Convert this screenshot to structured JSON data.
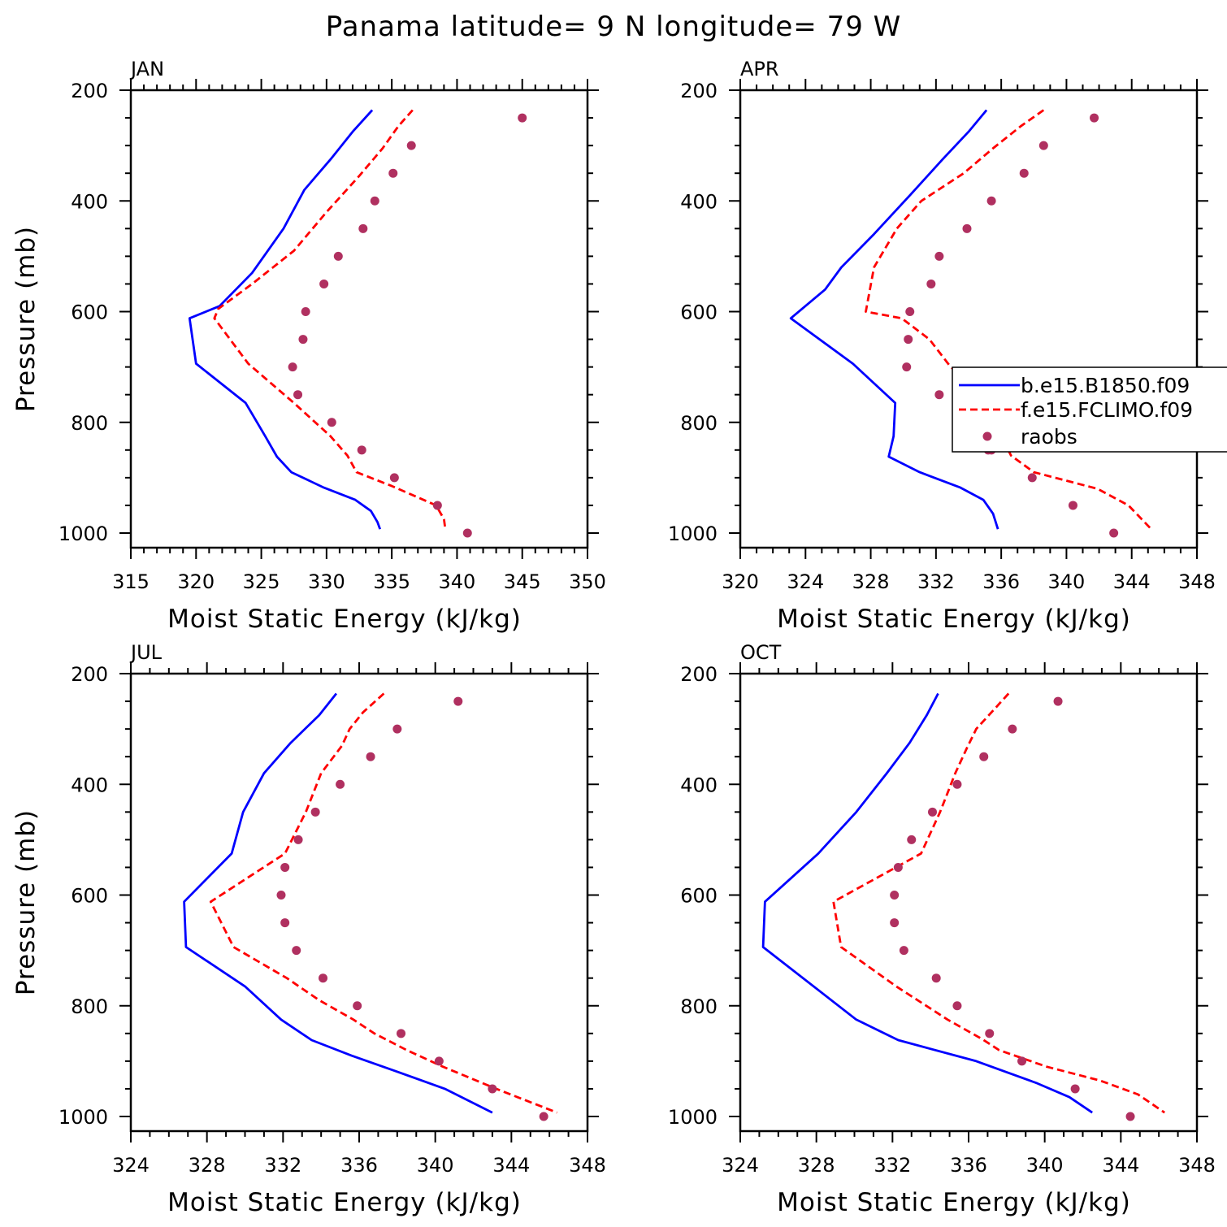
{
  "title": "Panama  latitude= 9 N longitude= 79 W",
  "colors": {
    "model_b": "#0000ff",
    "model_f": "#ff0000",
    "raobs": "#b03060"
  },
  "legend": {
    "entries": [
      {
        "label": "b.e15.B1850.f09",
        "style": "solid"
      },
      {
        "label": "f.e15.FCLIMO.f09",
        "style": "dashed"
      },
      {
        "label": "raobs",
        "style": "marker"
      }
    ]
  },
  "chart_data": [
    {
      "type": "line",
      "panel_label": "JAN",
      "xlabel": "Moist Static Energy (kJ/kg)",
      "ylabel": "Pressure (mb)",
      "xlim": [
        315,
        350
      ],
      "xticks": [
        315,
        320,
        325,
        330,
        335,
        340,
        345,
        350
      ],
      "ylim": [
        1000,
        200
      ],
      "yticks": [
        1000,
        800,
        600,
        400,
        200
      ],
      "series": [
        {
          "name": "b.e15.B1850.f09",
          "style": "solid",
          "x": [
            333.5,
            332.0,
            330.3,
            328.3,
            326.7,
            324.3,
            321.8,
            319.5,
            320.0,
            323.8,
            325.3,
            326.2,
            327.3,
            329.8,
            332.2,
            333.4,
            333.9,
            334.1
          ],
          "y": [
            236,
            275,
            325,
            380,
            450,
            530,
            590,
            612,
            694,
            765,
            825,
            862,
            890,
            918,
            940,
            960,
            980,
            993
          ]
        },
        {
          "name": "f.e15.FCLIMO.f09",
          "style": "dashed",
          "x": [
            336.6,
            335.5,
            334.3,
            332.5,
            330.0,
            327.5,
            324.3,
            321.7,
            321.4,
            324.0,
            327.5,
            330.3,
            331.6,
            332.3,
            335.0,
            338.4,
            339.0,
            339.1
          ],
          "y": [
            236,
            265,
            305,
            355,
            420,
            490,
            550,
            595,
            612,
            694,
            765,
            825,
            860,
            890,
            915,
            950,
            975,
            993
          ]
        },
        {
          "name": "raobs",
          "style": "marker",
          "x": [
            345.0,
            336.5,
            335.1,
            333.7,
            332.8,
            330.9,
            329.8,
            328.4,
            328.2,
            327.4,
            327.8,
            330.4,
            332.7,
            335.2,
            338.5,
            340.8
          ],
          "y": [
            250,
            300,
            350,
            400,
            450,
            500,
            550,
            600,
            650,
            700,
            750,
            800,
            850,
            900,
            950,
            1000
          ]
        }
      ]
    },
    {
      "type": "line",
      "panel_label": "APR",
      "xlabel": "Moist Static Energy (kJ/kg)",
      "ylabel": "",
      "xlim": [
        320,
        348
      ],
      "xticks": [
        320,
        324,
        328,
        332,
        336,
        340,
        344,
        348
      ],
      "ylim": [
        1000,
        200
      ],
      "yticks": [
        1000,
        800,
        600,
        400,
        200
      ],
      "series": [
        {
          "name": "b.e15.B1850.f09",
          "style": "solid",
          "x": [
            335.1,
            334.0,
            332.4,
            330.4,
            328.2,
            326.2,
            325.2,
            323.1,
            326.9,
            329.5,
            329.4,
            329.1,
            329.3,
            331.0,
            333.5,
            334.9,
            335.5,
            335.8
          ],
          "y": [
            236,
            275,
            325,
            390,
            460,
            520,
            560,
            612,
            694,
            765,
            825,
            862,
            865,
            890,
            918,
            940,
            965,
            993
          ]
        },
        {
          "name": "f.e15.FCLIMO.f09",
          "style": "dashed",
          "x": [
            338.6,
            337.2,
            335.5,
            333.7,
            331.1,
            329.6,
            328.2,
            327.7,
            329.9,
            331.6,
            332.9,
            334.6,
            335.5,
            336.0,
            336.6,
            338.0,
            341.9,
            343.8,
            345.2
          ],
          "y": [
            236,
            265,
            305,
            350,
            400,
            450,
            520,
            600,
            612,
            650,
            700,
            740,
            780,
            825,
            860,
            890,
            920,
            950,
            993
          ]
        },
        {
          "name": "raobs",
          "style": "marker",
          "x": [
            341.7,
            338.6,
            337.4,
            335.4,
            333.9,
            332.2,
            331.7,
            330.4,
            330.3,
            330.2,
            332.2,
            334.0,
            335.1,
            335.2,
            335.4,
            337.9,
            340.4,
            342.9
          ],
          "y": [
            250,
            300,
            350,
            400,
            450,
            500,
            550,
            600,
            650,
            700,
            750,
            800,
            825,
            850,
            850,
            900,
            950,
            1000
          ]
        }
      ]
    },
    {
      "type": "line",
      "panel_label": "JUL",
      "xlabel": "Moist Static Energy (kJ/kg)",
      "ylabel": "Pressure (mb)",
      "xlim": [
        324,
        348
      ],
      "xticks": [
        324,
        328,
        332,
        336,
        340,
        344,
        348
      ],
      "ylim": [
        1000,
        200
      ],
      "yticks": [
        1000,
        800,
        600,
        400,
        200
      ],
      "series": [
        {
          "name": "b.e15.B1850.f09",
          "style": "solid",
          "x": [
            334.8,
            333.9,
            332.4,
            331.0,
            329.9,
            329.3,
            326.8,
            326.9,
            330.0,
            331.9,
            333.5,
            335.6,
            337.9,
            340.5,
            343.0
          ],
          "y": [
            236,
            275,
            325,
            380,
            450,
            525,
            612,
            694,
            765,
            825,
            862,
            890,
            918,
            950,
            993
          ]
        },
        {
          "name": "f.e15.FCLIMO.f09",
          "style": "dashed",
          "x": [
            337.3,
            336.2,
            335.5,
            335.1,
            334.0,
            333.2,
            332.1,
            328.2,
            329.4,
            332.2,
            333.9,
            335.7,
            336.8,
            338.5,
            340.4,
            343.2,
            346.4
          ],
          "y": [
            236,
            270,
            300,
            330,
            380,
            450,
            525,
            612,
            694,
            750,
            790,
            825,
            850,
            880,
            910,
            950,
            993
          ]
        },
        {
          "name": "raobs",
          "style": "marker",
          "x": [
            341.2,
            338.0,
            336.6,
            335.0,
            333.7,
            332.8,
            332.1,
            331.9,
            332.1,
            332.7,
            334.1,
            335.9,
            338.2,
            340.2,
            343.0,
            345.7
          ],
          "y": [
            250,
            300,
            350,
            400,
            450,
            500,
            550,
            600,
            650,
            700,
            750,
            800,
            850,
            900,
            950,
            1000
          ]
        }
      ]
    },
    {
      "type": "line",
      "panel_label": "OCT",
      "xlabel": "Moist Static Energy (kJ/kg)",
      "ylabel": "",
      "xlim": [
        324,
        348
      ],
      "xticks": [
        324,
        328,
        332,
        336,
        340,
        344,
        348
      ],
      "ylim": [
        1000,
        200
      ],
      "yticks": [
        1000,
        800,
        600,
        400,
        200
      ],
      "series": [
        {
          "name": "b.e15.B1850.f09",
          "style": "solid",
          "x": [
            334.4,
            333.8,
            332.9,
            331.7,
            330.1,
            328.1,
            325.3,
            325.2,
            330.1,
            332.3,
            336.4,
            339.6,
            341.3,
            342.5
          ],
          "y": [
            236,
            275,
            325,
            380,
            450,
            525,
            612,
            694,
            825,
            862,
            900,
            940,
            965,
            993
          ]
        },
        {
          "name": "f.e15.FCLIMO.f09",
          "style": "dashed",
          "x": [
            338.1,
            337.2,
            336.4,
            335.9,
            335.3,
            334.5,
            333.5,
            328.9,
            329.3,
            332.2,
            334.9,
            336.7,
            337.6,
            340.1,
            342.9,
            344.9,
            346.3
          ],
          "y": [
            236,
            270,
            300,
            335,
            380,
            450,
            525,
            612,
            694,
            765,
            825,
            860,
            880,
            910,
            935,
            960,
            993
          ]
        },
        {
          "name": "raobs",
          "style": "marker",
          "x": [
            340.7,
            338.3,
            336.8,
            335.4,
            334.1,
            333.0,
            332.3,
            332.1,
            332.1,
            332.6,
            334.3,
            335.4,
            337.1,
            338.8,
            341.6,
            344.5
          ],
          "y": [
            250,
            300,
            350,
            400,
            450,
            500,
            550,
            600,
            650,
            700,
            750,
            800,
            850,
            900,
            950,
            1000
          ]
        }
      ]
    }
  ]
}
